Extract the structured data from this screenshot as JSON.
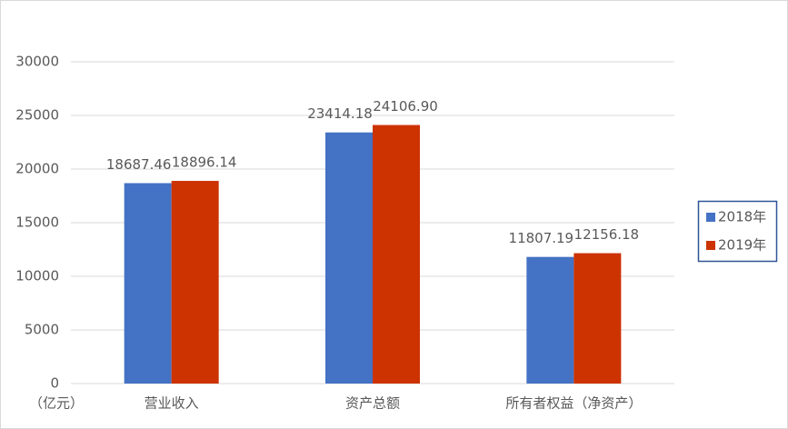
{
  "chart_data": {
    "type": "bar",
    "y_label": "（亿元）",
    "categories": [
      "营业收入",
      "资产总额",
      "所有者权益（净资产）"
    ],
    "series": [
      {
        "name": "2018年",
        "color": "#4472c4",
        "values": [
          18687.46,
          23414.18,
          11807.19
        ],
        "value_labels": [
          "18687.46",
          "23414.18",
          "11807.19"
        ]
      },
      {
        "name": "2019年",
        "color": "#cc3300",
        "values": [
          18896.14,
          24106.9,
          12156.18
        ],
        "value_labels": [
          "18896.14",
          "24106.90",
          "12156.18"
        ]
      }
    ],
    "ylim": [
      0,
      30000
    ],
    "yticks": [
      0,
      5000,
      10000,
      15000,
      20000,
      25000,
      30000
    ],
    "grid": true,
    "legend": "right"
  }
}
